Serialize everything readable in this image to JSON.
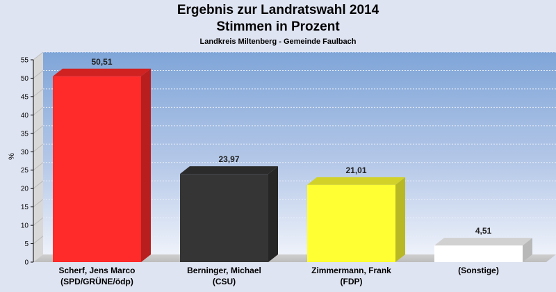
{
  "chart_data": {
    "type": "bar",
    "title": "Ergebnis zur Landratswahl 2014",
    "subtitle": "Stimmen in Prozent",
    "subsubtitle": "Landkreis Miltenberg - Gemeinde Faulbach",
    "ylabel": "%",
    "ylim": [
      0,
      55
    ],
    "yticks": [
      0,
      5,
      10,
      15,
      20,
      25,
      30,
      35,
      40,
      45,
      50,
      55
    ],
    "categories": [
      [
        "Scherf, Jens Marco",
        "(SPD/GRÜNE/ödp)"
      ],
      [
        "Berninger, Michael",
        "(CSU)"
      ],
      [
        "Zimmermann, Frank",
        "(FDP)"
      ],
      [
        "(Sonstige)",
        ""
      ]
    ],
    "values": [
      50.51,
      23.97,
      21.01,
      4.51
    ],
    "value_labels": [
      "50,51",
      "23,97",
      "21,01",
      "4,51"
    ],
    "colors": [
      "#ff2a2a",
      "#353535",
      "#ffff33",
      "#ffffff"
    ],
    "grid": true,
    "legend": "none"
  }
}
